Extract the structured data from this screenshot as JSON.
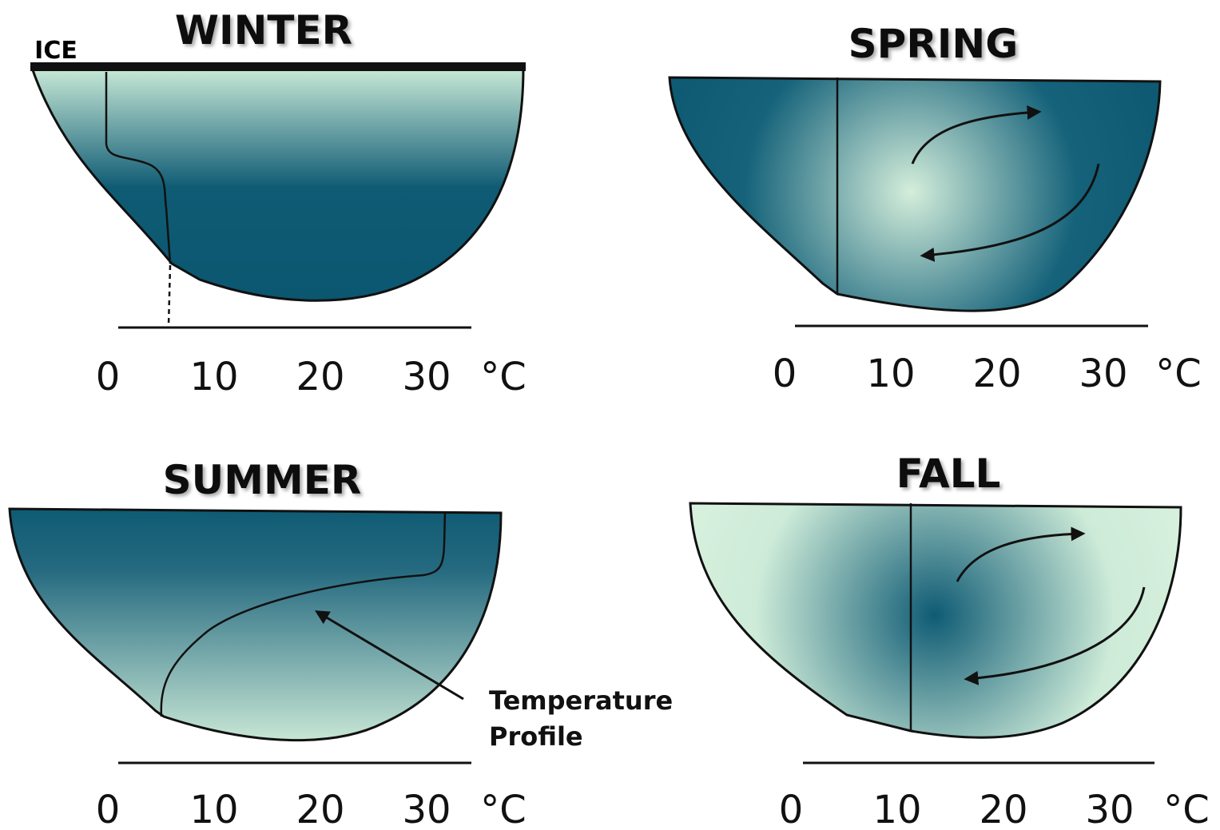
{
  "panels": [
    {
      "title": "WINTER",
      "ticks": [
        0,
        10,
        20,
        30
      ],
      "unit": "°C"
    },
    {
      "title": "SPRING",
      "ticks": [
        0,
        10,
        20,
        30
      ],
      "unit": "°C"
    },
    {
      "title": "SUMMER",
      "ticks": [
        0,
        10,
        20,
        30
      ],
      "unit": "°C"
    },
    {
      "title": "FALL",
      "ticks": [
        0,
        10,
        20,
        30
      ],
      "unit": "°C"
    }
  ],
  "ice": "ICE",
  "annotation": [
    "Temperature",
    "Profile"
  ]
}
